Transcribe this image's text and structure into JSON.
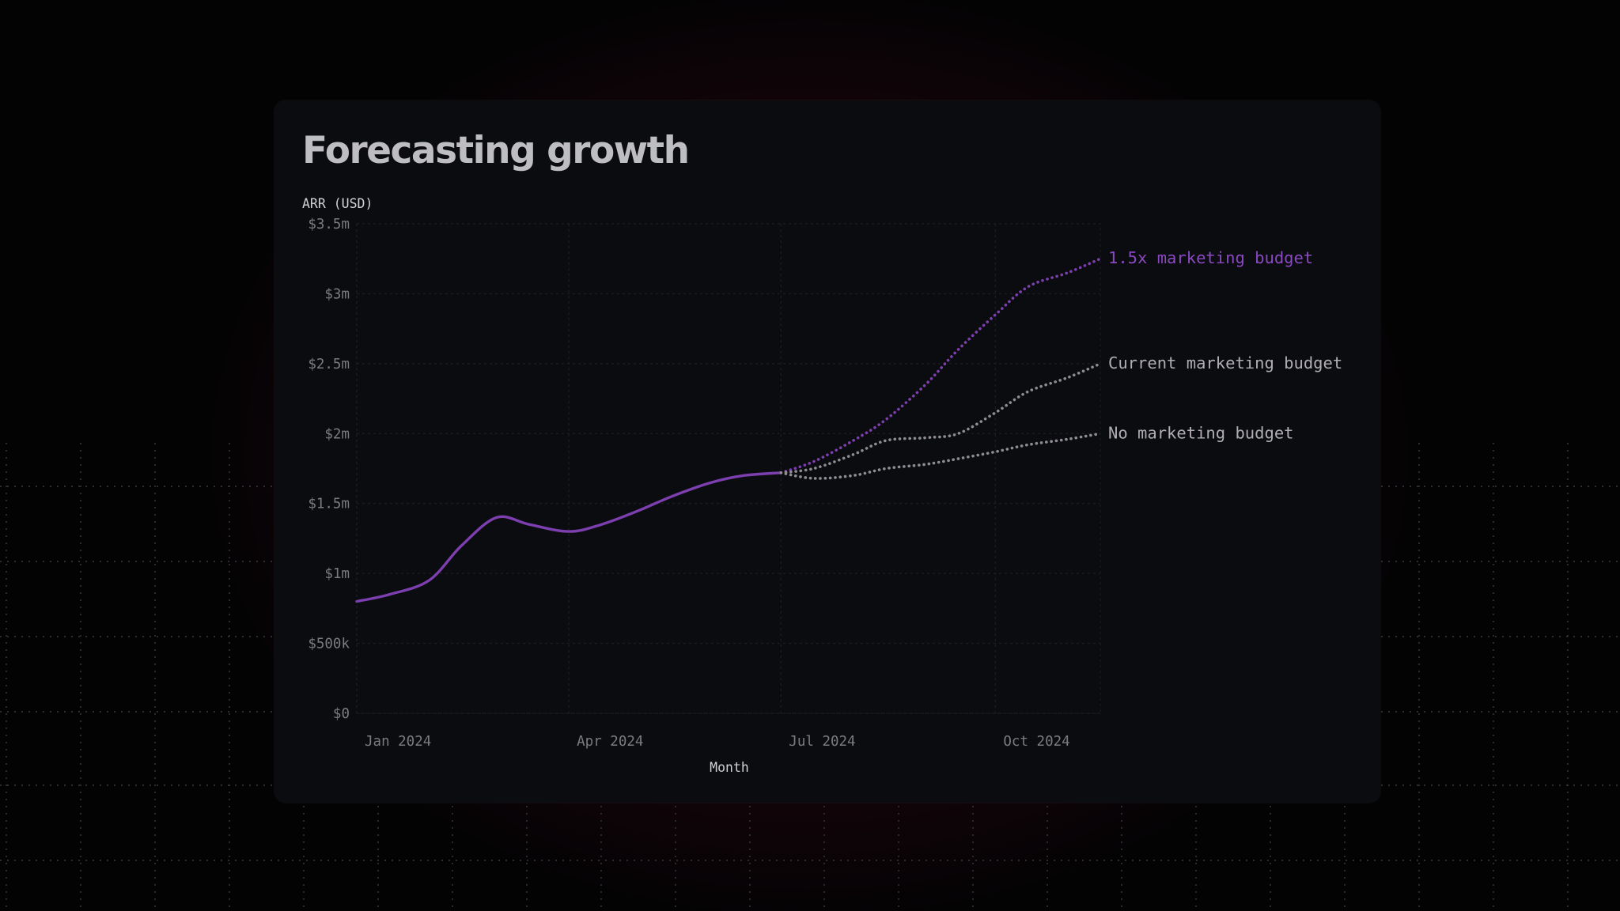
{
  "card": {
    "title": "Forecasting growth"
  },
  "colors": {
    "accent": "#7d3fb0",
    "forecast_gray": "#8e8c92",
    "tick_text": "#7b7b80",
    "axis_title": "#d2d2d6"
  },
  "chart_data": {
    "type": "line",
    "title": "Forecasting growth",
    "ylabel": "ARR (USD)",
    "xlabel": "Month",
    "ylim": [
      0,
      3500000
    ],
    "y_ticks": [
      {
        "value": 0,
        "label": "$0"
      },
      {
        "value": 500000,
        "label": "$500k"
      },
      {
        "value": 1000000,
        "label": "$1m"
      },
      {
        "value": 1500000,
        "label": "$1.5m"
      },
      {
        "value": 2000000,
        "label": "$2m"
      },
      {
        "value": 2500000,
        "label": "$2.5m"
      },
      {
        "value": 3000000,
        "label": "$3m"
      },
      {
        "value": 3500000,
        "label": "$3.5m"
      }
    ],
    "x_range": [
      "2024-01-01",
      "2024-11-15"
    ],
    "x_ticks": [
      {
        "date": "2024-01-01",
        "label": "Jan 2024"
      },
      {
        "date": "2024-04-01",
        "label": "Apr 2024"
      },
      {
        "date": "2024-07-01",
        "label": "Jul 2024"
      },
      {
        "date": "2024-10-01",
        "label": "Oct 2024"
      }
    ],
    "grid": true,
    "series": [
      {
        "style": "solid",
        "color": "#7d3fb0",
        "points": [
          [
            "2024-01-01",
            800000
          ],
          [
            "2024-01-15",
            850000
          ],
          [
            "2024-02-01",
            950000
          ],
          [
            "2024-02-15",
            1200000
          ],
          [
            "2024-03-01",
            1400000
          ],
          [
            "2024-03-15",
            1350000
          ],
          [
            "2024-04-01",
            1300000
          ],
          [
            "2024-04-15",
            1350000
          ],
          [
            "2024-05-01",
            1450000
          ],
          [
            "2024-05-15",
            1550000
          ],
          [
            "2024-06-01",
            1650000
          ],
          [
            "2024-06-15",
            1700000
          ],
          [
            "2024-07-01",
            1720000
          ]
        ]
      },
      {
        "name": "1.5x marketing budget",
        "style": "dotted",
        "color": "#7d3fb0",
        "points": [
          [
            "2024-07-01",
            1720000
          ],
          [
            "2024-07-15",
            1800000
          ],
          [
            "2024-08-01",
            1950000
          ],
          [
            "2024-08-15",
            2100000
          ],
          [
            "2024-09-01",
            2350000
          ],
          [
            "2024-09-15",
            2600000
          ],
          [
            "2024-10-01",
            2850000
          ],
          [
            "2024-10-15",
            3050000
          ],
          [
            "2024-11-01",
            3150000
          ],
          [
            "2024-11-15",
            3250000
          ]
        ]
      },
      {
        "name": "Current marketing budget",
        "style": "dotted",
        "color": "#8e8c92",
        "points": [
          [
            "2024-07-01",
            1720000
          ],
          [
            "2024-07-15",
            1750000
          ],
          [
            "2024-08-01",
            1850000
          ],
          [
            "2024-08-15",
            1950000
          ],
          [
            "2024-09-01",
            1970000
          ],
          [
            "2024-09-15",
            2000000
          ],
          [
            "2024-10-01",
            2150000
          ],
          [
            "2024-10-15",
            2300000
          ],
          [
            "2024-11-01",
            2400000
          ],
          [
            "2024-11-15",
            2500000
          ]
        ]
      },
      {
        "name": "No marketing budget",
        "style": "dotted",
        "color": "#8e8c92",
        "points": [
          [
            "2024-07-01",
            1720000
          ],
          [
            "2024-07-15",
            1680000
          ],
          [
            "2024-08-01",
            1700000
          ],
          [
            "2024-08-15",
            1750000
          ],
          [
            "2024-09-01",
            1780000
          ],
          [
            "2024-09-15",
            1820000
          ],
          [
            "2024-10-01",
            1870000
          ],
          [
            "2024-10-15",
            1920000
          ],
          [
            "2024-11-01",
            1960000
          ],
          [
            "2024-11-15",
            2000000
          ]
        ]
      }
    ]
  }
}
